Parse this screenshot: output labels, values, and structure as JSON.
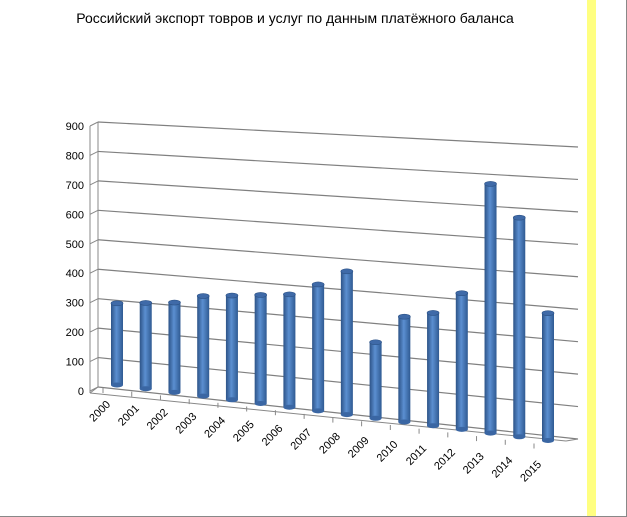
{
  "chart_data": {
    "type": "bar",
    "style": "3d-cylinder",
    "title": "Российский экспорт  товров и услуг по данным платёжного баланса",
    "categories": [
      "2000",
      "2001",
      "2002",
      "2003",
      "2004",
      "2005",
      "2006",
      "2007",
      "2008",
      "2009",
      "2010",
      "2011",
      "2012",
      "2013",
      "2014",
      "2015"
    ],
    "values": [
      290,
      300,
      310,
      340,
      350,
      360,
      370,
      410,
      460,
      240,
      330,
      350,
      420,
      770,
      670,
      380
    ],
    "ylim": [
      0,
      900
    ],
    "yticks": [
      0,
      100,
      200,
      300,
      400,
      500,
      600,
      700,
      800,
      900
    ],
    "xlabel": "",
    "ylabel": "",
    "grid": true,
    "legend": "none",
    "bar_color": "#4f81bd"
  }
}
